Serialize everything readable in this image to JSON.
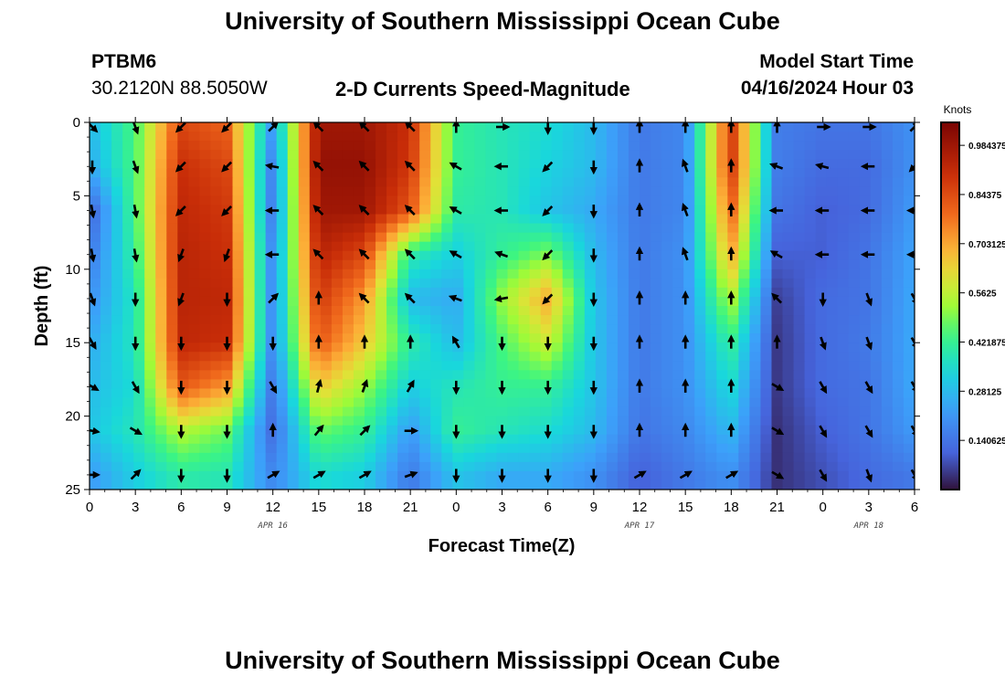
{
  "header": {
    "title": "University of Southern Mississippi Ocean Cube",
    "station_id": "PTBM6",
    "coordinates": "30.2120N  88.5050W",
    "model_start_label": "Model Start Time",
    "model_start_value": "04/16/2024 Hour 03",
    "footer_title": "University of Southern Mississippi Ocean Cube"
  },
  "chart_data": {
    "type": "heatmap",
    "title": "2-D Currents Speed-Magnitude",
    "xlabel": "Forecast Time(Z)",
    "ylabel": "Depth (ft)",
    "xlim": [
      0,
      54
    ],
    "ylim": [
      25,
      0
    ],
    "x_tick_values": [
      0,
      3,
      6,
      9,
      12,
      15,
      18,
      21,
      24,
      27,
      30,
      33,
      36,
      39,
      42,
      45,
      48,
      51,
      54
    ],
    "x_tick_labels": [
      "0",
      "3",
      "6",
      "9",
      "12",
      "15",
      "18",
      "21",
      "0",
      "3",
      "6",
      "9",
      "12",
      "15",
      "18",
      "21",
      "0",
      "3",
      "6"
    ],
    "y_tick_values": [
      0,
      5,
      10,
      15,
      20,
      25
    ],
    "y_tick_labels": [
      "0",
      "5",
      "10",
      "15",
      "20",
      "25"
    ],
    "date_labels": [
      {
        "x": 12,
        "label": "APR 16"
      },
      {
        "x": 36,
        "label": "APR 17"
      },
      {
        "x": 51,
        "label": "APR 18"
      }
    ],
    "colorbar": {
      "unit": "Knots",
      "min": 0.0,
      "max": 1.05,
      "tick_values": [
        0.984375,
        0.84375,
        0.703125,
        0.5625,
        0.421875,
        0.28125,
        0.140625
      ],
      "tick_labels": [
        "0.984375",
        "0.84375",
        "0.703125",
        "0.5625",
        "0.421875",
        "0.28125",
        "0.140625"
      ]
    },
    "speed_grid": {
      "x_hours": [
        0,
        3,
        6,
        9,
        12,
        15,
        18,
        21,
        24,
        27,
        30,
        33,
        36,
        39,
        42,
        45,
        48,
        51,
        54
      ],
      "depths_ft": [
        0,
        3,
        6,
        9,
        12,
        15,
        18,
        21,
        24
      ],
      "values": [
        [
          0.28,
          0.45,
          0.85,
          0.8,
          0.22,
          0.98,
          0.98,
          0.9,
          0.42,
          0.38,
          0.35,
          0.28,
          0.15,
          0.18,
          0.88,
          0.16,
          0.14,
          0.14,
          0.2
        ],
        [
          0.25,
          0.45,
          0.9,
          0.85,
          0.16,
          1.0,
          1.0,
          0.88,
          0.42,
          0.38,
          0.33,
          0.28,
          0.15,
          0.18,
          0.88,
          0.16,
          0.12,
          0.12,
          0.2
        ],
        [
          0.1,
          0.45,
          0.92,
          0.88,
          0.15,
          0.98,
          0.98,
          0.82,
          0.4,
          0.38,
          0.3,
          0.25,
          0.15,
          0.18,
          0.8,
          0.14,
          0.1,
          0.12,
          0.22
        ],
        [
          0.15,
          0.42,
          0.93,
          0.9,
          0.18,
          0.93,
          0.85,
          0.4,
          0.32,
          0.42,
          0.5,
          0.28,
          0.15,
          0.2,
          0.7,
          0.1,
          0.1,
          0.14,
          0.24
        ],
        [
          0.2,
          0.38,
          0.93,
          0.92,
          0.18,
          0.88,
          0.72,
          0.28,
          0.25,
          0.52,
          0.7,
          0.3,
          0.15,
          0.2,
          0.55,
          0.06,
          0.12,
          0.14,
          0.25
        ],
        [
          0.25,
          0.38,
          0.92,
          0.9,
          0.18,
          0.82,
          0.65,
          0.4,
          0.28,
          0.45,
          0.58,
          0.3,
          0.15,
          0.2,
          0.42,
          0.05,
          0.12,
          0.15,
          0.25
        ],
        [
          0.28,
          0.35,
          0.82,
          0.72,
          0.14,
          0.65,
          0.52,
          0.32,
          0.38,
          0.42,
          0.42,
          0.3,
          0.15,
          0.2,
          0.35,
          0.05,
          0.12,
          0.14,
          0.25
        ],
        [
          0.3,
          0.38,
          0.55,
          0.48,
          0.12,
          0.48,
          0.42,
          0.22,
          0.42,
          0.38,
          0.35,
          0.28,
          0.14,
          0.18,
          0.28,
          0.04,
          0.1,
          0.14,
          0.22
        ],
        [
          0.22,
          0.32,
          0.4,
          0.38,
          0.18,
          0.35,
          0.32,
          0.15,
          0.3,
          0.25,
          0.25,
          0.2,
          0.1,
          0.15,
          0.2,
          0.04,
          0.08,
          0.12,
          0.15
        ]
      ]
    },
    "vector_field": {
      "x_hours": [
        0,
        3,
        6,
        9,
        12,
        15,
        18,
        21,
        24,
        27,
        30,
        33,
        36,
        39,
        42,
        45,
        48,
        51,
        54
      ],
      "depths_ft": [
        0,
        3,
        6,
        9,
        12,
        15,
        18,
        21,
        24
      ],
      "direction_deg": [
        [
          135,
          160,
          225,
          225,
          45,
          315,
          315,
          315,
          0,
          90,
          180,
          180,
          0,
          0,
          0,
          0,
          90,
          90,
          45
        ],
        [
          180,
          160,
          225,
          225,
          280,
          315,
          315,
          315,
          300,
          270,
          225,
          180,
          0,
          340,
          0,
          290,
          285,
          270,
          225
        ],
        [
          170,
          170,
          225,
          225,
          270,
          315,
          315,
          315,
          300,
          270,
          225,
          180,
          0,
          340,
          0,
          270,
          270,
          270,
          270
        ],
        [
          170,
          170,
          200,
          200,
          270,
          315,
          315,
          315,
          300,
          290,
          225,
          180,
          0,
          340,
          0,
          300,
          270,
          270,
          270
        ],
        [
          160,
          180,
          200,
          180,
          45,
          0,
          315,
          315,
          290,
          260,
          225,
          180,
          0,
          0,
          0,
          315,
          180,
          160,
          150
        ],
        [
          150,
          180,
          180,
          180,
          180,
          0,
          0,
          0,
          330,
          180,
          180,
          180,
          0,
          0,
          0,
          0,
          160,
          160,
          150
        ],
        [
          120,
          150,
          180,
          180,
          150,
          15,
          20,
          30,
          180,
          180,
          180,
          180,
          0,
          0,
          0,
          120,
          150,
          150,
          150
        ],
        [
          100,
          120,
          180,
          180,
          0,
          40,
          45,
          90,
          180,
          180,
          180,
          180,
          0,
          0,
          0,
          120,
          150,
          150,
          150
        ],
        [
          90,
          45,
          180,
          180,
          60,
          60,
          60,
          70,
          180,
          180,
          180,
          180,
          60,
          60,
          60,
          120,
          150,
          160,
          150
        ]
      ]
    }
  }
}
